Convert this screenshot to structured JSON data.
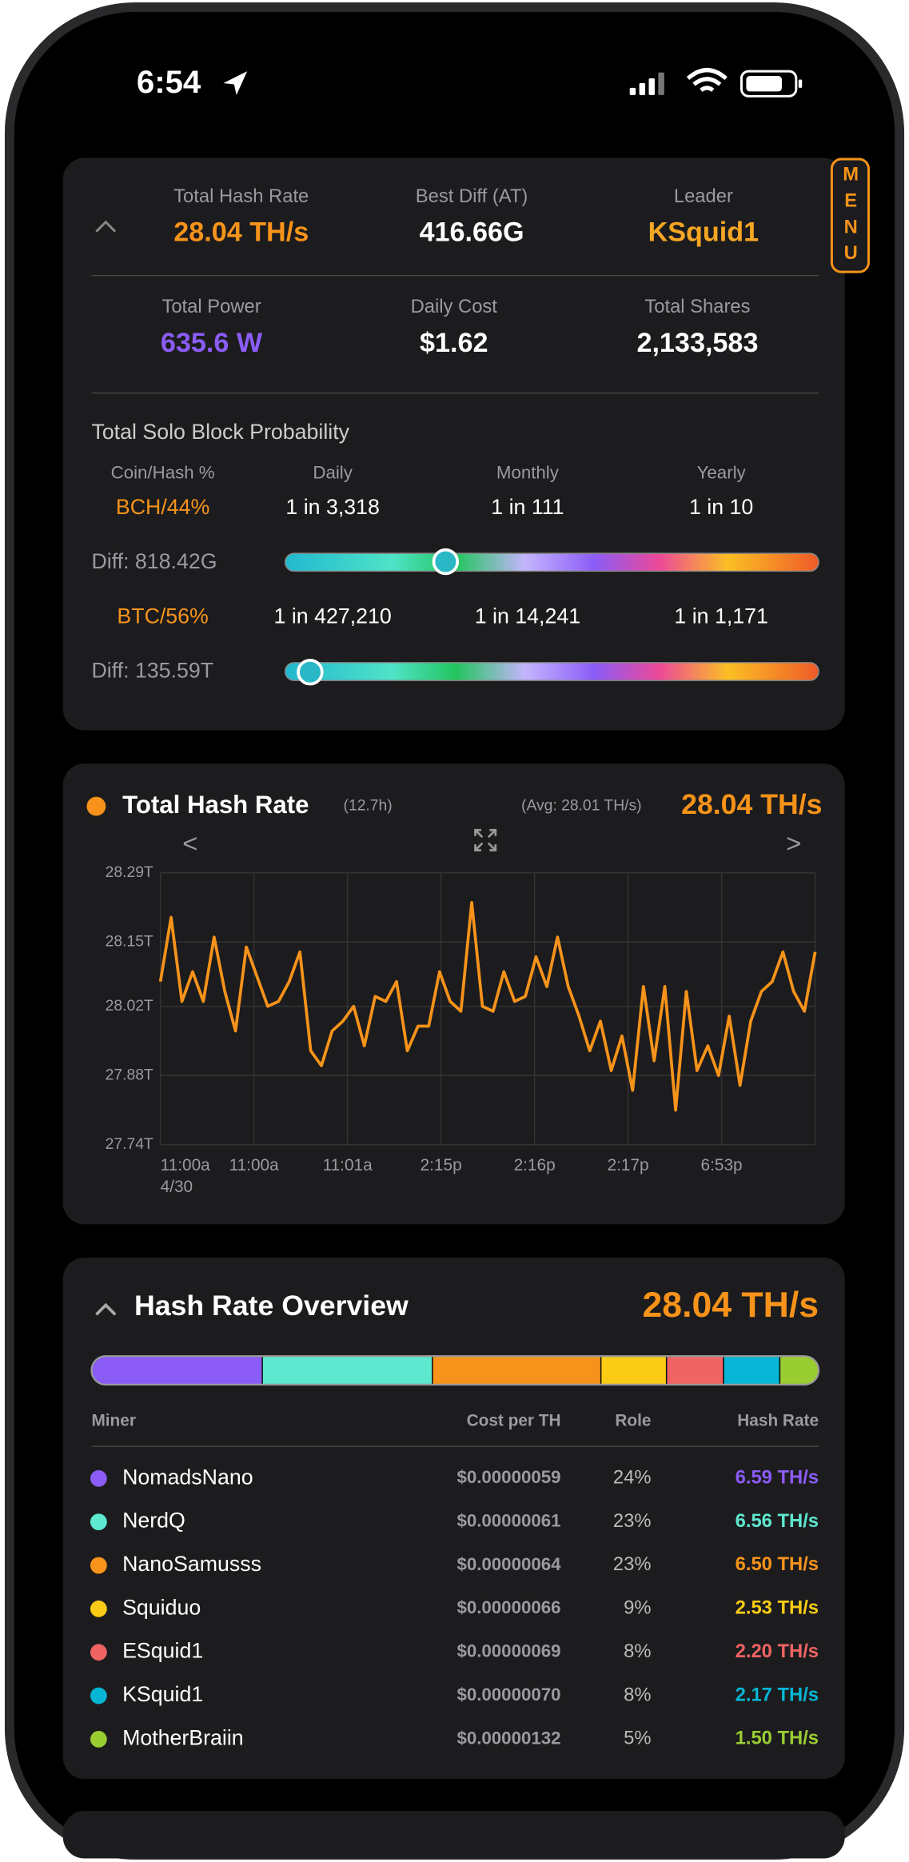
{
  "status_bar": {
    "time": "6:54"
  },
  "summary": {
    "menu": "MENU",
    "stats": [
      {
        "label": "Total Hash Rate",
        "value": "28.04 TH/s"
      },
      {
        "label": "Best Diff (AT)",
        "value": "416.66G"
      },
      {
        "label": "Leader",
        "value": "KSquid1"
      },
      {
        "label": "Total Power",
        "value": "635.6 W"
      },
      {
        "label": "Daily Cost",
        "value": "$1.62"
      },
      {
        "label": "Total Shares",
        "value": "2,133,583"
      }
    ]
  },
  "probability": {
    "title": "Total Solo Block Probability",
    "headers": [
      "Coin/Hash %",
      "Daily",
      "Monthly",
      "Yearly"
    ],
    "rows": [
      {
        "coin": "BCH/44%",
        "daily": "1 in 3,318",
        "monthly": "1 in 111",
        "yearly": "1 in 10",
        "diff": "Diff: 818.42G"
      },
      {
        "coin": "BTC/56%",
        "daily": "1 in 427,210",
        "monthly": "1 in 14,241",
        "yearly": "1 in 1,171",
        "diff": "Diff: 135.59T"
      }
    ]
  },
  "chart_data": {
    "type": "line",
    "title": "Total Hash Rate",
    "subtitle": "(12.7h)",
    "annotation": "(Avg: 28.01 TH/s)",
    "current": "28.04 TH/s",
    "nav_prev": "<",
    "nav_next": ">",
    "color": "#f7931a",
    "grid": true,
    "ylim": [
      27.74,
      28.29
    ],
    "yticks": [
      {
        "value": 28.29,
        "label": "28.29T"
      },
      {
        "value": 28.15,
        "label": "28.15T"
      },
      {
        "value": 28.02,
        "label": "28.02T"
      },
      {
        "value": 27.88,
        "label": "27.88T"
      },
      {
        "value": 27.74,
        "label": "27.74T"
      }
    ],
    "x_labels": [
      "11:00a",
      "11:00a",
      "11:01a",
      "2:15p",
      "2:16p",
      "2:17p",
      "6:53p"
    ],
    "x_first_date": "4/30",
    "values": [
      28.07,
      28.2,
      28.03,
      28.09,
      28.03,
      28.16,
      28.05,
      27.97,
      28.14,
      28.08,
      28.02,
      28.03,
      28.07,
      28.13,
      27.93,
      27.9,
      27.97,
      27.99,
      28.02,
      27.94,
      28.04,
      28.03,
      28.07,
      27.93,
      27.98,
      27.98,
      28.09,
      28.03,
      28.01,
      28.23,
      28.02,
      28.01,
      28.09,
      28.03,
      28.04,
      28.12,
      28.06,
      28.16,
      28.06,
      28.0,
      27.93,
      27.99,
      27.89,
      27.96,
      27.85,
      28.06,
      27.91,
      28.06,
      27.81,
      28.05,
      27.89,
      27.94,
      27.88,
      28.0,
      27.86,
      27.99,
      28.05,
      28.07,
      28.13,
      28.05,
      28.01,
      28.13
    ]
  },
  "overview": {
    "title": "Hash Rate Overview",
    "total": "28.04 TH/s",
    "columns": [
      "Miner",
      "Cost per TH",
      "Role",
      "Hash Rate"
    ],
    "miners": [
      "NomadsNano",
      "NerdQ",
      "NanoSamusss",
      "Squiduo",
      "ESquid1",
      "KSquid1",
      "MotherBraiin"
    ],
    "colors": [
      "#8b5cf6",
      "#5ee8d0",
      "#f7931a",
      "#facc15",
      "#f06464",
      "#06b6d4",
      "#9acd32"
    ],
    "costs": [
      "$0.00000059",
      "$0.00000061",
      "$0.00000064",
      "$0.00000066",
      "$0.00000069",
      "$0.00000070",
      "$0.00000132"
    ],
    "roles": [
      "24%",
      "23%",
      "23%",
      "9%",
      "8%",
      "8%",
      "5%"
    ],
    "values": [
      6.59,
      6.56,
      6.5,
      2.53,
      2.2,
      2.17,
      1.5
    ],
    "value_labels": [
      "6.59 TH/s",
      "6.56 TH/s",
      "6.50 TH/s",
      "2.53 TH/s",
      "2.20 TH/s",
      "2.17 TH/s",
      "1.50 TH/s"
    ]
  }
}
